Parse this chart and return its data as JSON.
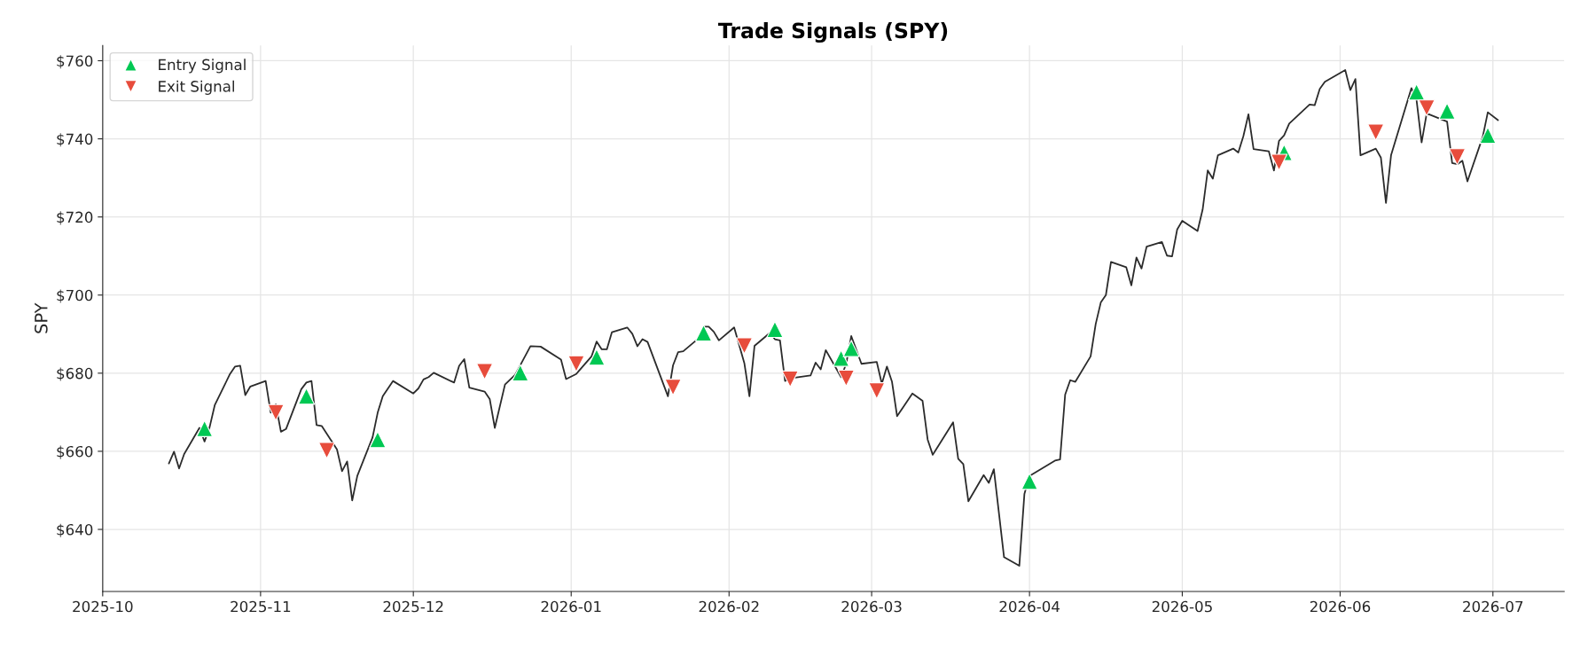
{
  "chart_data": {
    "type": "line",
    "title": "Trade Signals (SPY)",
    "ylabel": "SPY",
    "xlim": [
      "2025-10-01",
      "2026-07-15"
    ],
    "ylim": [
      624.1,
      763.9
    ],
    "xticks": [
      {
        "value": "2025-10",
        "label": "2025-10"
      },
      {
        "value": "2025-11",
        "label": "2025-11"
      },
      {
        "value": "2025-12",
        "label": "2025-12"
      },
      {
        "value": "2026-01",
        "label": "2026-01"
      },
      {
        "value": "2026-02",
        "label": "2026-02"
      },
      {
        "value": "2026-03",
        "label": "2026-03"
      },
      {
        "value": "2026-04",
        "label": "2026-04"
      },
      {
        "value": "2026-05",
        "label": "2026-05"
      },
      {
        "value": "2026-06",
        "label": "2026-06"
      },
      {
        "value": "2026-07",
        "label": "2026-07"
      }
    ],
    "yticks": [
      {
        "value": 640,
        "label": "$640"
      },
      {
        "value": 660,
        "label": "$660"
      },
      {
        "value": 680,
        "label": "$680"
      },
      {
        "value": 700,
        "label": "$700"
      },
      {
        "value": 720,
        "label": "$720"
      },
      {
        "value": 740,
        "label": "$740"
      },
      {
        "value": 760,
        "label": "$760"
      }
    ],
    "grid": true,
    "legend": "top left",
    "series": [
      {
        "color": "#2b2b2b",
        "marker": "none",
        "line_style": "solid",
        "x": [
          "2025-10-14",
          "2025-10-15",
          "2025-10-16",
          "2025-10-17",
          "2025-10-20",
          "2025-10-21",
          "2025-10-22",
          "2025-10-23",
          "2025-10-26",
          "2025-10-27",
          "2025-10-28",
          "2025-10-29",
          "2025-10-30",
          "2025-11-02",
          "2025-11-03",
          "2025-11-04",
          "2025-11-05",
          "2025-11-06",
          "2025-11-09",
          "2025-11-10",
          "2025-11-11",
          "2025-11-12",
          "2025-11-13",
          "2025-11-16",
          "2025-11-17",
          "2025-11-18",
          "2025-11-19",
          "2025-11-20",
          "2025-11-23",
          "2025-11-24",
          "2025-11-25",
          "2025-11-27",
          "2025-12-01",
          "2025-12-02",
          "2025-12-03",
          "2025-12-04",
          "2025-12-05",
          "2025-12-09",
          "2025-12-10",
          "2025-12-11",
          "2025-12-12",
          "2025-12-15",
          "2025-12-16",
          "2025-12-17",
          "2025-12-19",
          "2025-12-21",
          "2025-12-24",
          "2025-12-26",
          "2025-12-30",
          "2025-12-31",
          "2026-01-02",
          "2026-01-05",
          "2026-01-06",
          "2026-01-07",
          "2026-01-08",
          "2026-01-09",
          "2026-01-12",
          "2026-01-13",
          "2026-01-14",
          "2026-01-15",
          "2026-01-16",
          "2026-01-20",
          "2026-01-21",
          "2026-01-22",
          "2026-01-23",
          "2026-01-26",
          "2026-01-27",
          "2026-01-28",
          "2026-01-29",
          "2026-01-30",
          "2026-02-02",
          "2026-02-04",
          "2026-02-05",
          "2026-02-06",
          "2026-02-09",
          "2026-02-10",
          "2026-02-11",
          "2026-02-12",
          "2026-02-13",
          "2026-02-17",
          "2026-02-18",
          "2026-02-19",
          "2026-02-20",
          "2026-02-23",
          "2026-02-24",
          "2026-02-25",
          "2026-02-27",
          "2026-03-02",
          "2026-03-03",
          "2026-03-04",
          "2026-03-05",
          "2026-03-06",
          "2026-03-09",
          "2026-03-11",
          "2026-03-12",
          "2026-03-13",
          "2026-03-17",
          "2026-03-18",
          "2026-03-19",
          "2026-03-20",
          "2026-03-23",
          "2026-03-24",
          "2026-03-25",
          "2026-03-27",
          "2026-03-30",
          "2026-03-31",
          "2026-04-01",
          "2026-04-06",
          "2026-04-07",
          "2026-04-08",
          "2026-04-09",
          "2026-04-10",
          "2026-04-13",
          "2026-04-14",
          "2026-04-15",
          "2026-04-16",
          "2026-04-17",
          "2026-04-20",
          "2026-04-21",
          "2026-04-22",
          "2026-04-23",
          "2026-04-24",
          "2026-04-27",
          "2026-04-28",
          "2026-04-29",
          "2026-04-30",
          "2026-05-01",
          "2026-05-04",
          "2026-05-05",
          "2026-05-06",
          "2026-05-07",
          "2026-05-08",
          "2026-05-11",
          "2026-05-12",
          "2026-05-13",
          "2026-05-14",
          "2026-05-15",
          "2026-05-18",
          "2026-05-19",
          "2026-05-20",
          "2026-05-21",
          "2026-05-22",
          "2026-05-26",
          "2026-05-27",
          "2026-05-28",
          "2026-05-29",
          "2026-06-02",
          "2026-06-03",
          "2026-06-04",
          "2026-06-05",
          "2026-06-08",
          "2026-06-09",
          "2026-06-10",
          "2026-06-11",
          "2026-06-15",
          "2026-06-16",
          "2026-06-17",
          "2026-06-18",
          "2026-06-22",
          "2026-06-23",
          "2026-06-24",
          "2026-06-25",
          "2026-06-26",
          "2026-06-29",
          "2026-06-30",
          "2026-07-02"
        ],
        "values": [
          656.9,
          659.9,
          655.6,
          659.3,
          666.0,
          662.5,
          666.2,
          671.8,
          679.8,
          681.7,
          681.9,
          674.4,
          676.6,
          678.0,
          669.9,
          672.0,
          665.0,
          665.7,
          675.9,
          677.6,
          678.0,
          666.7,
          666.5,
          660.5,
          654.9,
          657.4,
          647.4,
          653.7,
          663.6,
          669.9,
          674.1,
          678.0,
          674.8,
          676.1,
          678.4,
          679.0,
          680.1,
          677.6,
          681.9,
          683.6,
          676.3,
          675.3,
          673.4,
          666.0,
          677.1,
          679.6,
          686.9,
          686.8,
          683.5,
          678.5,
          679.8,
          684.3,
          688.1,
          686.1,
          686.1,
          690.5,
          691.7,
          690.1,
          686.9,
          688.7,
          688.0,
          674.1,
          682.0,
          685.4,
          685.6,
          688.9,
          691.9,
          691.9,
          690.6,
          688.4,
          691.7,
          682.6,
          674.1,
          687.0,
          690.3,
          688.7,
          688.4,
          678.0,
          678.7,
          679.4,
          682.7,
          681.0,
          685.9,
          679.0,
          682.4,
          689.5,
          682.4,
          682.9,
          677.3,
          681.7,
          677.8,
          669.0,
          674.8,
          672.9,
          663.0,
          659.1,
          667.4,
          658.1,
          656.7,
          647.2,
          653.9,
          651.9,
          655.4,
          632.9,
          630.7,
          649.1,
          653.7,
          657.6,
          657.9,
          674.5,
          678.2,
          677.8,
          684.3,
          692.6,
          698.1,
          700.0,
          708.5,
          707.1,
          702.5,
          709.6,
          706.8,
          712.4,
          713.6,
          710.1,
          709.9,
          716.8,
          719.0,
          716.4,
          721.9,
          731.9,
          729.8,
          735.8,
          737.5,
          736.5,
          740.7,
          746.3,
          737.4,
          736.8,
          731.9,
          739.5,
          740.9,
          743.9,
          748.8,
          748.6,
          752.8,
          754.6,
          757.6,
          752.5,
          755.3,
          735.8,
          737.5,
          735.2,
          723.6,
          735.8,
          753.0,
          750.0,
          739.1,
          746.5,
          744.4,
          733.8,
          733.5,
          734.4,
          729.1,
          740.5,
          746.8,
          744.8
        ]
      },
      {
        "type": "scatter",
        "name": "Entry Signal",
        "color": "#00c853",
        "marker": "triangle",
        "x": [
          "2025-10-21",
          "2025-11-10",
          "2025-11-24",
          "2025-12-22",
          "2026-01-06",
          "2026-01-27",
          "2026-02-10",
          "2026-02-23",
          "2026-02-25",
          "2026-04-01",
          "2026-05-21",
          "2026-06-16",
          "2026-06-22",
          "2026-06-30"
        ],
        "values": [
          665.8,
          674.1,
          663.0,
          680.1,
          684.1,
          690.3,
          691.2,
          683.8,
          686.3,
          652.3,
          736.5,
          752.0,
          747.1,
          740.9
        ]
      },
      {
        "type": "scatter",
        "name": "Exit Signal",
        "color": "#e74c3c",
        "marker": "triangle-down",
        "x": [
          "2025-11-04",
          "2025-11-14",
          "2025-12-15",
          "2026-01-02",
          "2026-01-21",
          "2026-02-04",
          "2026-02-13",
          "2026-02-24",
          "2026-03-02",
          "2026-05-20",
          "2026-06-08",
          "2026-06-18",
          "2026-06-24"
        ],
        "values": [
          669.9,
          660.2,
          680.4,
          682.4,
          676.4,
          687.0,
          678.5,
          678.7,
          675.5,
          734.0,
          741.7,
          747.9,
          735.4
        ]
      }
    ]
  }
}
